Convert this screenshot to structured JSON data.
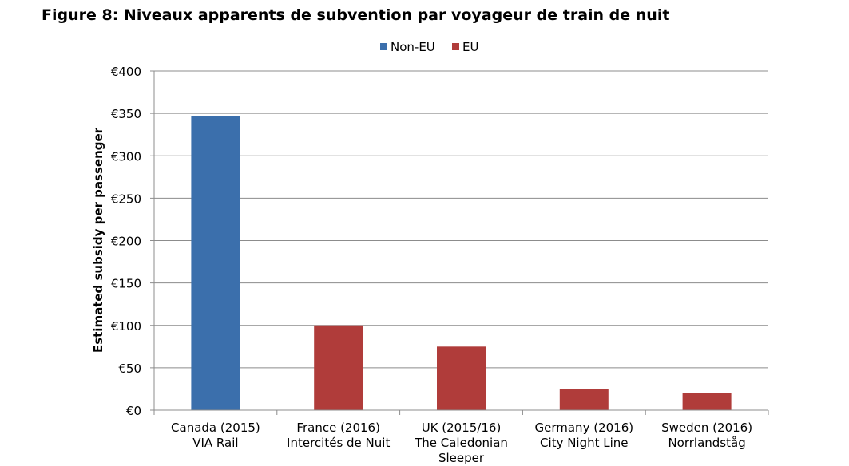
{
  "chart_data": {
    "type": "bar",
    "title": "Figure 8: Niveaux apparents de subvention par voyageur de train de nuit",
    "xlabel": "",
    "ylabel": "Estimated subsidy per passenger",
    "ylim": [
      0,
      400
    ],
    "yticks": [
      0,
      50,
      100,
      150,
      200,
      250,
      300,
      350,
      400
    ],
    "ytick_labels": [
      "€0",
      "€50",
      "€100",
      "€150",
      "€200",
      "€250",
      "€300",
      "€350",
      "€400"
    ],
    "categories": [
      [
        "Canada (2015)",
        "VIA Rail"
      ],
      [
        "France (2016)",
        "Intercités de Nuit"
      ],
      [
        "UK (2015/16)",
        "The Caledonian",
        "Sleeper"
      ],
      [
        "Germany (2016)",
        "City Night Line"
      ],
      [
        "Sweden (2016)",
        "Norrlandståg"
      ]
    ],
    "values": [
      347,
      100,
      75,
      25,
      20
    ],
    "groups": [
      "Non-EU",
      "EU",
      "EU",
      "EU",
      "EU"
    ],
    "legend": [
      {
        "name": "Non-EU",
        "color": "#3b6fac"
      },
      {
        "name": "EU",
        "color": "#b03c3a"
      }
    ],
    "legend_position": "top",
    "grid": true
  }
}
